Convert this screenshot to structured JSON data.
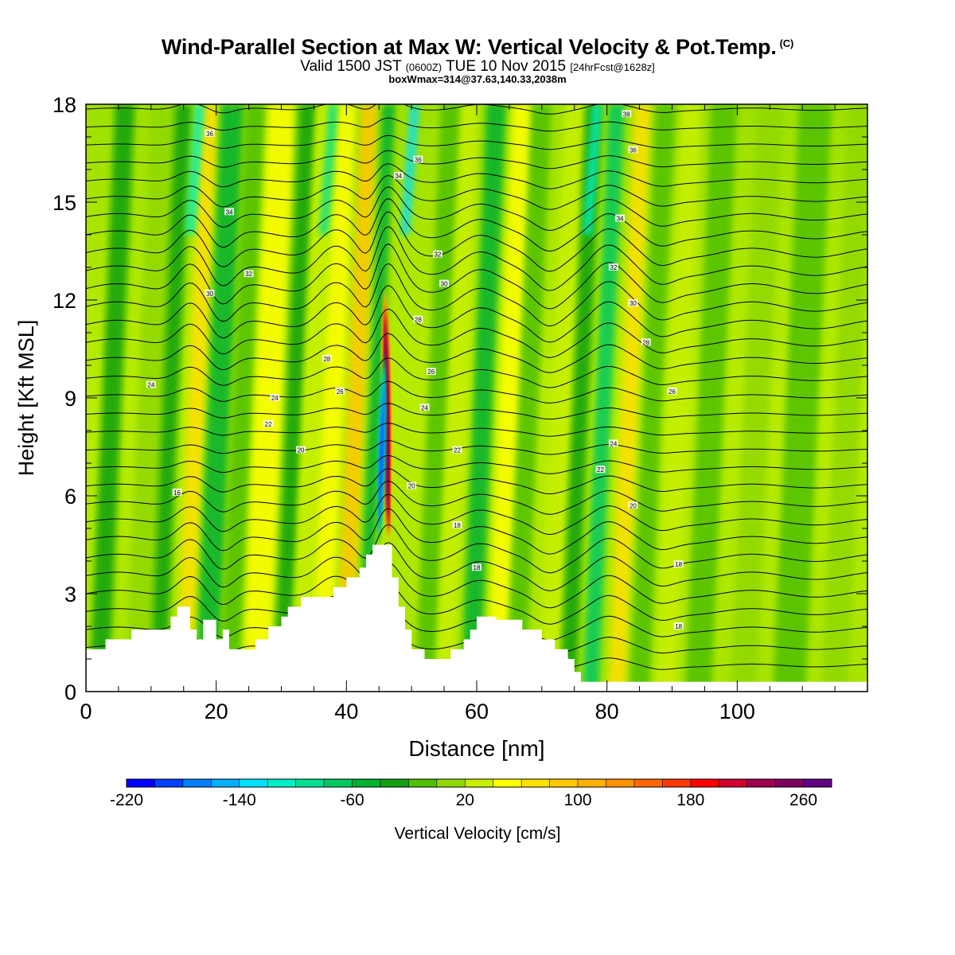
{
  "header": {
    "title": "Wind-Parallel Section at Max W: Vertical Velocity & Pot.Temp.",
    "copyright_mark": "(C)",
    "valid_prefix": "Valid 1500 JST",
    "valid_utc": "(0600Z)",
    "valid_date": "TUE 10 Nov 2015",
    "forecast": "[24hrFcst@1628z]",
    "box_info": "boxWmax=314@37.63,140.33,2038m"
  },
  "chart_data": {
    "type": "heatmap",
    "xlabel": "Distance [nm]",
    "ylabel": "Height [Kft MSL]",
    "xlim": [
      0,
      120
    ],
    "ylim": [
      0,
      18
    ],
    "x_ticks": [
      0,
      20,
      40,
      60,
      80,
      100
    ],
    "y_ticks": [
      0,
      3,
      6,
      9,
      12,
      15,
      18
    ],
    "colorbar": {
      "label": "Vertical Velocity [cm/s]",
      "min": -220,
      "max": 280,
      "step": 20,
      "tick_values": [
        -220,
        -140,
        -60,
        20,
        100,
        180,
        260
      ],
      "colors": [
        "#0000ff",
        "#0040ff",
        "#0080ff",
        "#00b0ff",
        "#00e0ff",
        "#00f0c8",
        "#00e090",
        "#00c860",
        "#00b030",
        "#10a010",
        "#50c000",
        "#90d800",
        "#c8f000",
        "#ffff00",
        "#ffe000",
        "#ffc800",
        "#ffb000",
        "#ff9000",
        "#ff6800",
        "#ff3800",
        "#ff0000",
        "#d00030",
        "#a00050",
        "#800060",
        "#600080"
      ]
    },
    "features": [
      {
        "name": "updraft core",
        "x": 47,
        "y_bottom": 4.5,
        "y_top": 12.5,
        "w_max": 314
      },
      {
        "name": "downdraft core",
        "x": 45,
        "y_bottom": 4.5,
        "y_top": 10.5,
        "w_min": -220
      }
    ],
    "theta_contour_labels": [
      {
        "value": "16",
        "x": 14,
        "y": 6.1
      },
      {
        "value": "18",
        "x": 57,
        "y": 5.1
      },
      {
        "value": "18",
        "x": 60,
        "y": 3.8
      },
      {
        "value": "18",
        "x": 91,
        "y": 3.9
      },
      {
        "value": "18",
        "x": 91,
        "y": 2.0
      },
      {
        "value": "20",
        "x": 33,
        "y": 7.4
      },
      {
        "value": "20",
        "x": 50,
        "y": 6.3
      },
      {
        "value": "20",
        "x": 84,
        "y": 5.7
      },
      {
        "value": "22",
        "x": 28,
        "y": 8.2
      },
      {
        "value": "22",
        "x": 57,
        "y": 7.4
      },
      {
        "value": "22",
        "x": 79,
        "y": 6.8
      },
      {
        "value": "24",
        "x": 29,
        "y": 9.0
      },
      {
        "value": "24",
        "x": 52,
        "y": 8.7
      },
      {
        "value": "24",
        "x": 81,
        "y": 7.6
      },
      {
        "value": "24",
        "x": 10,
        "y": 9.4
      },
      {
        "value": "26",
        "x": 39,
        "y": 9.2
      },
      {
        "value": "26",
        "x": 53,
        "y": 9.8
      },
      {
        "value": "26",
        "x": 90,
        "y": 9.2
      },
      {
        "value": "28",
        "x": 37,
        "y": 10.2
      },
      {
        "value": "28",
        "x": 51,
        "y": 11.4
      },
      {
        "value": "28",
        "x": 86,
        "y": 10.7
      },
      {
        "value": "30",
        "x": 19,
        "y": 12.2
      },
      {
        "value": "30",
        "x": 55,
        "y": 12.5
      },
      {
        "value": "30",
        "x": 84,
        "y": 11.9
      },
      {
        "value": "32",
        "x": 25,
        "y": 12.8
      },
      {
        "value": "32",
        "x": 54,
        "y": 13.4
      },
      {
        "value": "32",
        "x": 81,
        "y": 13.0
      },
      {
        "value": "34",
        "x": 22,
        "y": 14.7
      },
      {
        "value": "34",
        "x": 48,
        "y": 15.8
      },
      {
        "value": "34",
        "x": 82,
        "y": 14.5
      },
      {
        "value": "36",
        "x": 19,
        "y": 17.1
      },
      {
        "value": "36",
        "x": 51,
        "y": 16.3
      },
      {
        "value": "36",
        "x": 84,
        "y": 16.6
      },
      {
        "value": "38",
        "x": 83,
        "y": 17.7
      }
    ],
    "terrain_profile": [
      [
        0,
        1.3
      ],
      [
        3,
        1.3
      ],
      [
        3,
        1.6
      ],
      [
        7,
        1.6
      ],
      [
        7,
        1.9
      ],
      [
        13,
        1.9
      ],
      [
        13,
        2.3
      ],
      [
        14,
        2.3
      ],
      [
        14,
        2.6
      ],
      [
        16,
        2.6
      ],
      [
        16,
        1.9
      ],
      [
        17,
        1.9
      ],
      [
        17,
        1.6
      ],
      [
        18,
        1.6
      ],
      [
        18,
        2.2
      ],
      [
        20,
        2.2
      ],
      [
        20,
        1.6
      ],
      [
        21,
        1.6
      ],
      [
        21,
        1.9
      ],
      [
        22,
        1.9
      ],
      [
        22,
        1.3
      ],
      [
        26,
        1.3
      ],
      [
        26,
        1.6
      ],
      [
        28,
        1.6
      ],
      [
        28,
        2.0
      ],
      [
        30,
        2.0
      ],
      [
        30,
        2.3
      ],
      [
        31,
        2.3
      ],
      [
        31,
        2.6
      ],
      [
        33,
        2.6
      ],
      [
        33,
        2.9
      ],
      [
        38,
        2.9
      ],
      [
        38,
        3.2
      ],
      [
        40,
        3.2
      ],
      [
        40,
        3.5
      ],
      [
        42,
        3.5
      ],
      [
        42,
        3.8
      ],
      [
        43,
        3.8
      ],
      [
        43,
        4.2
      ],
      [
        44,
        4.2
      ],
      [
        44,
        4.5
      ],
      [
        47,
        4.5
      ],
      [
        47,
        3.5
      ],
      [
        48,
        3.5
      ],
      [
        48,
        2.6
      ],
      [
        49,
        2.6
      ],
      [
        49,
        1.9
      ],
      [
        50,
        1.9
      ],
      [
        50,
        1.3
      ],
      [
        52,
        1.3
      ],
      [
        52,
        1.0
      ],
      [
        56,
        1.0
      ],
      [
        56,
        1.3
      ],
      [
        58,
        1.3
      ],
      [
        58,
        1.6
      ],
      [
        59,
        1.6
      ],
      [
        59,
        1.9
      ],
      [
        60,
        1.9
      ],
      [
        60,
        2.3
      ],
      [
        63,
        2.3
      ],
      [
        63,
        2.2
      ],
      [
        67,
        2.2
      ],
      [
        67,
        1.9
      ],
      [
        70,
        1.9
      ],
      [
        70,
        1.6
      ],
      [
        72,
        1.6
      ],
      [
        72,
        1.3
      ],
      [
        74,
        1.3
      ],
      [
        74,
        1.0
      ],
      [
        75,
        1.0
      ],
      [
        75,
        0.6
      ],
      [
        76,
        0.6
      ],
      [
        76,
        0.3
      ],
      [
        120,
        0.3
      ]
    ]
  }
}
